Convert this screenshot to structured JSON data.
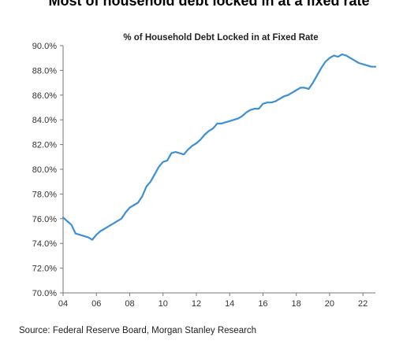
{
  "headline": "Most of household debt locked in at a fixed rate",
  "source": "Source: Federal Reserve Board, Morgan Stanley Research",
  "chart_data": {
    "type": "line",
    "title": "% of Household Debt Locked in at Fixed Rate",
    "xlabel": "",
    "ylabel": "",
    "x_tick_labels": [
      "04",
      "06",
      "08",
      "10",
      "12",
      "14",
      "16",
      "18",
      "20",
      "22"
    ],
    "x_ticks": [
      2004,
      2006,
      2008,
      2010,
      2012,
      2014,
      2016,
      2018,
      2020,
      2022
    ],
    "y_tick_labels": [
      "70.0%",
      "72.0%",
      "74.0%",
      "76.0%",
      "78.0%",
      "80.0%",
      "82.0%",
      "84.0%",
      "86.0%",
      "88.0%",
      "90.0%"
    ],
    "y_ticks": [
      70,
      72,
      74,
      76,
      78,
      80,
      82,
      84,
      86,
      88,
      90
    ],
    "xlim": [
      2004,
      2022.75
    ],
    "ylim": [
      70,
      90
    ],
    "grid": false,
    "line_color": "#3d8fd6",
    "series": [
      {
        "x": [
          2004.0,
          2004.25,
          2004.5,
          2004.75,
          2005.0,
          2005.25,
          2005.5,
          2005.75,
          2006.0,
          2006.25,
          2006.5,
          2006.75,
          2007.0,
          2007.25,
          2007.5,
          2007.75,
          2008.0,
          2008.25,
          2008.5,
          2008.75,
          2009.0,
          2009.25,
          2009.5,
          2009.75,
          2010.0,
          2010.25,
          2010.5,
          2010.75,
          2011.0,
          2011.25,
          2011.5,
          2011.75,
          2012.0,
          2012.25,
          2012.5,
          2012.75,
          2013.0,
          2013.25,
          2013.5,
          2013.75,
          2014.0,
          2014.25,
          2014.5,
          2014.75,
          2015.0,
          2015.25,
          2015.5,
          2015.75,
          2016.0,
          2016.25,
          2016.5,
          2016.75,
          2017.0,
          2017.25,
          2017.5,
          2017.75,
          2018.0,
          2018.25,
          2018.5,
          2018.75,
          2019.0,
          2019.25,
          2019.5,
          2019.75,
          2020.0,
          2020.25,
          2020.5,
          2020.75,
          2021.0,
          2021.25,
          2021.5,
          2021.75,
          2022.0,
          2022.25,
          2022.5,
          2022.75
        ],
        "values": [
          76.1,
          75.8,
          75.5,
          74.8,
          74.7,
          74.6,
          74.5,
          74.3,
          74.7,
          75.0,
          75.2,
          75.4,
          75.6,
          75.8,
          76.0,
          76.5,
          76.9,
          77.1,
          77.3,
          77.8,
          78.6,
          79.0,
          79.6,
          80.2,
          80.6,
          80.7,
          81.3,
          81.4,
          81.3,
          81.2,
          81.6,
          81.9,
          82.1,
          82.4,
          82.8,
          83.1,
          83.3,
          83.7,
          83.7,
          83.8,
          83.9,
          84.0,
          84.1,
          84.3,
          84.6,
          84.8,
          84.9,
          84.9,
          85.3,
          85.4,
          85.4,
          85.5,
          85.7,
          85.9,
          86.0,
          86.2,
          86.4,
          86.6,
          86.6,
          86.5,
          87.0,
          87.6,
          88.2,
          88.7,
          89.0,
          89.2,
          89.1,
          89.3,
          89.2,
          89.0,
          88.8,
          88.6,
          88.5,
          88.4,
          88.3,
          88.3
        ]
      }
    ]
  }
}
